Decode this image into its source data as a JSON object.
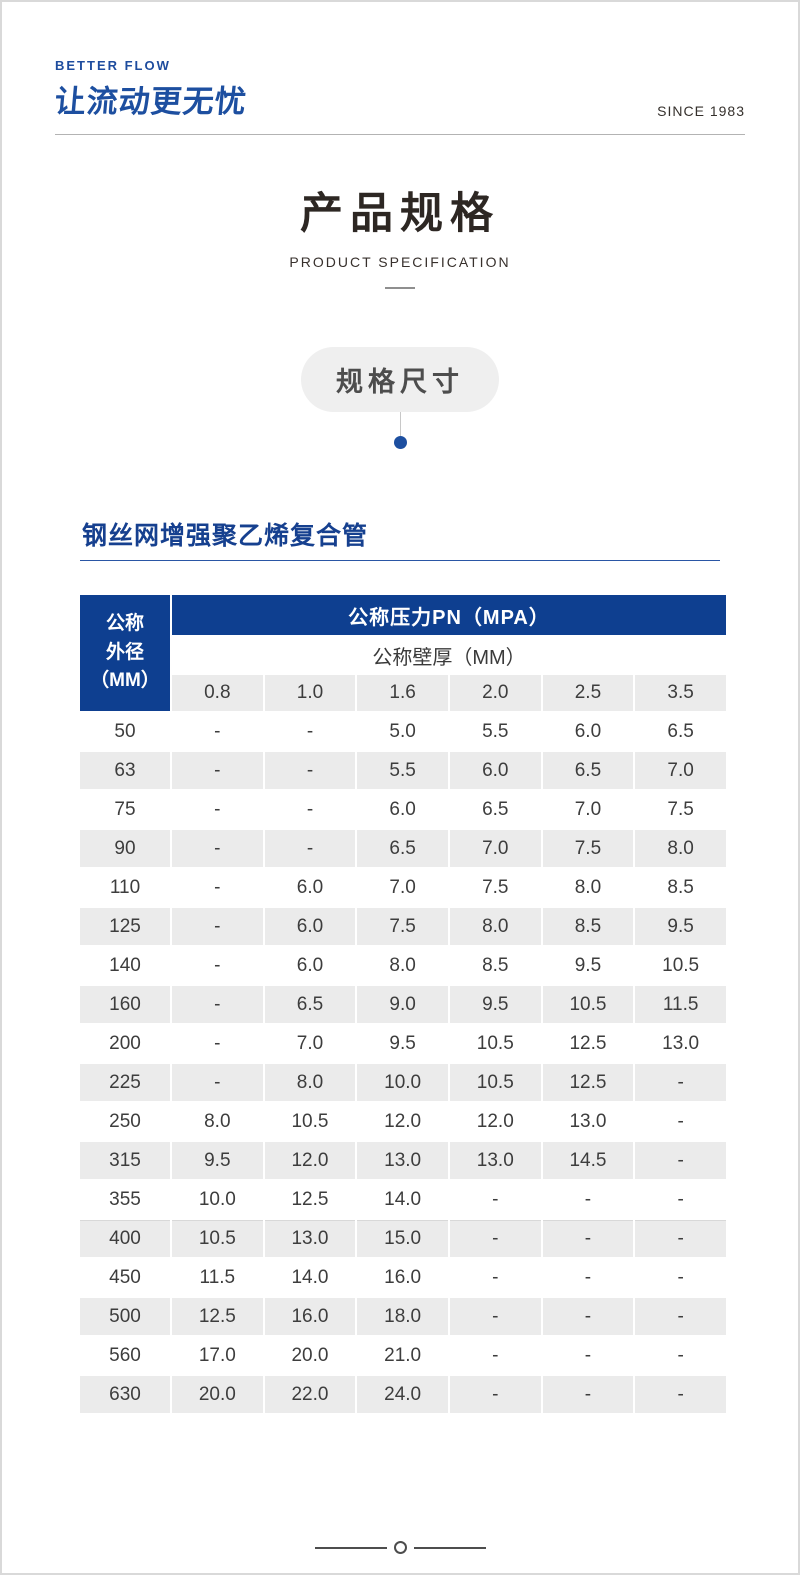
{
  "header": {
    "brand_line1": "BETTER FLOW",
    "brand_line2": "让流动更无忧",
    "since": "SINCE 1983"
  },
  "title": {
    "main": "产品规格",
    "sub": "PRODUCT SPECIFICATION"
  },
  "badge": {
    "label": "规格尺寸"
  },
  "section": {
    "heading": "钢丝网增强聚乙烯复合管"
  },
  "table": {
    "pressure_header": "公称压力PN（MPA）",
    "thickness_header": "公称壁厚（MM）",
    "row_header": [
      "公称",
      "外径",
      "（MM）"
    ],
    "pressure_columns": [
      "0.8",
      "1.0",
      "1.6",
      "2.0",
      "2.5",
      "3.5"
    ],
    "rows": [
      {
        "od": "50",
        "values": [
          "-",
          "-",
          "5.0",
          "5.5",
          "6.0",
          "6.5"
        ]
      },
      {
        "od": "63",
        "values": [
          "-",
          "-",
          "5.5",
          "6.0",
          "6.5",
          "7.0"
        ]
      },
      {
        "od": "75",
        "values": [
          "-",
          "-",
          "6.0",
          "6.5",
          "7.0",
          "7.5"
        ]
      },
      {
        "od": "90",
        "values": [
          "-",
          "-",
          "6.5",
          "7.0",
          "7.5",
          "8.0"
        ]
      },
      {
        "od": "110",
        "values": [
          "-",
          "6.0",
          "7.0",
          "7.5",
          "8.0",
          "8.5"
        ]
      },
      {
        "od": "125",
        "values": [
          "-",
          "6.0",
          "7.5",
          "8.0",
          "8.5",
          "9.5"
        ]
      },
      {
        "od": "140",
        "values": [
          "-",
          "6.0",
          "8.0",
          "8.5",
          "9.5",
          "10.5"
        ]
      },
      {
        "od": "160",
        "values": [
          "-",
          "6.5",
          "9.0",
          "9.5",
          "10.5",
          "11.5"
        ]
      },
      {
        "od": "200",
        "values": [
          "-",
          "7.0",
          "9.5",
          "10.5",
          "12.5",
          "13.0"
        ]
      },
      {
        "od": "225",
        "values": [
          "-",
          "8.0",
          "10.0",
          "10.5",
          "12.5",
          "-"
        ]
      },
      {
        "od": "250",
        "values": [
          "8.0",
          "10.5",
          "12.0",
          "12.0",
          "13.0",
          "-"
        ]
      },
      {
        "od": "315",
        "values": [
          "9.5",
          "12.0",
          "13.0",
          "13.0",
          "14.5",
          "-"
        ]
      },
      {
        "od": "355",
        "values": [
          "10.0",
          "12.5",
          "14.0",
          "-",
          "-",
          "-"
        ]
      },
      {
        "od": "400",
        "values": [
          "10.5",
          "13.0",
          "15.0",
          "-",
          "-",
          "-"
        ]
      },
      {
        "od": "450",
        "values": [
          "11.5",
          "14.0",
          "16.0",
          "-",
          "-",
          "-"
        ]
      },
      {
        "od": "500",
        "values": [
          "12.5",
          "16.0",
          "18.0",
          "-",
          "-",
          "-"
        ]
      },
      {
        "od": "560",
        "values": [
          "17.0",
          "20.0",
          "21.0",
          "-",
          "-",
          "-"
        ]
      },
      {
        "od": "630",
        "values": [
          "20.0",
          "22.0",
          "24.0",
          "-",
          "-",
          "-"
        ]
      }
    ]
  },
  "colors": {
    "table_header_blue": "#0e3f90",
    "brand_blue": "#1d4fa0",
    "section_heading_blue": "#16408f",
    "row_alt_gray": "#ebebeb",
    "badge_gray": "#efefef",
    "text_dark": "#3d3d3d"
  }
}
